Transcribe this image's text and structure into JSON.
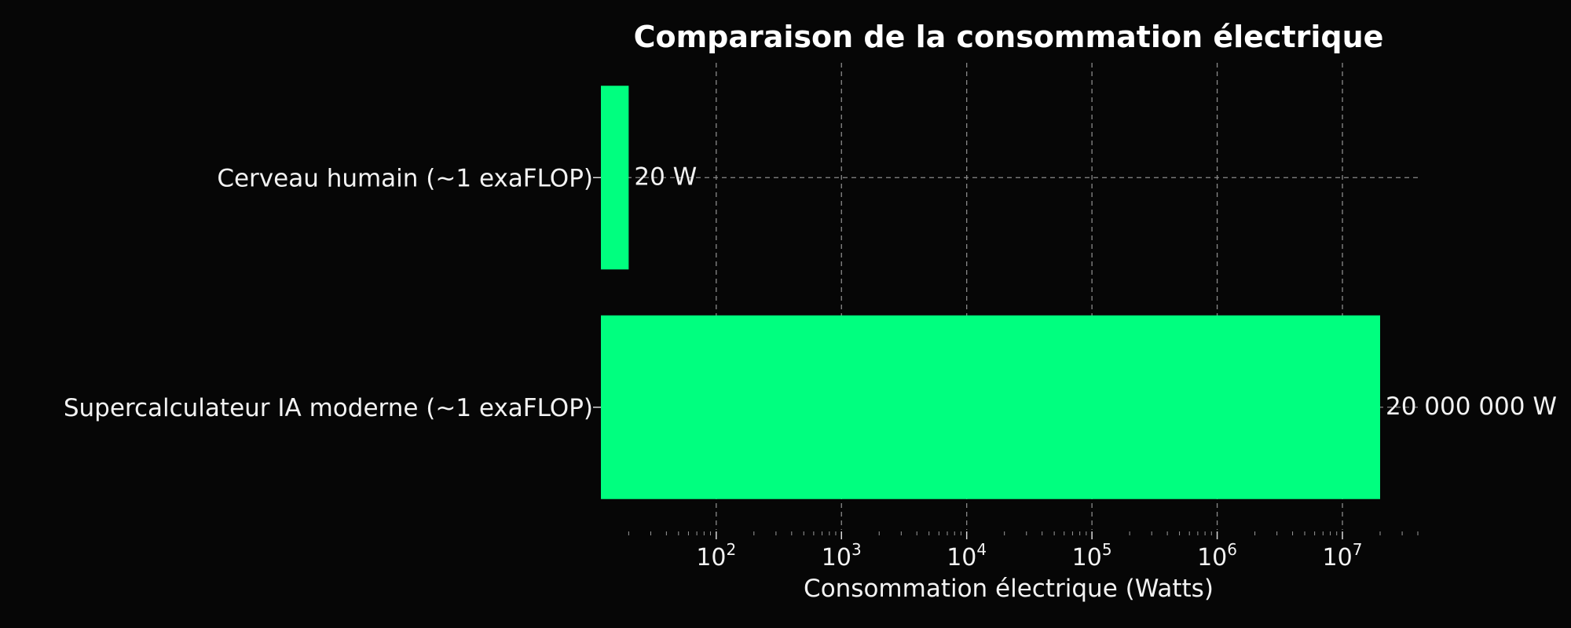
{
  "chart_data": {
    "type": "bar",
    "orientation": "horizontal",
    "title": "Comparaison de la consommation électrique",
    "xlabel": "Consommation électrique (Watts)",
    "ylabel": "",
    "xscale": "log",
    "xlim": [
      12,
      40000000
    ],
    "grid": true,
    "categories": [
      "Cerveau humain (~1 exaFLOP)",
      "Supercalculateur IA moderne (~1 exaFLOP)"
    ],
    "values": [
      20,
      20000000
    ],
    "value_labels": [
      "20 W",
      "20 000 000 W"
    ],
    "x_ticks": [
      {
        "value": 100,
        "base": "10",
        "exp": "2"
      },
      {
        "value": 1000,
        "base": "10",
        "exp": "3"
      },
      {
        "value": 10000,
        "base": "10",
        "exp": "4"
      },
      {
        "value": 100000,
        "base": "10",
        "exp": "5"
      },
      {
        "value": 1000000,
        "base": "10",
        "exp": "6"
      },
      {
        "value": 10000000,
        "base": "10",
        "exp": "7"
      }
    ],
    "colors": {
      "bar": "#00ff7f",
      "background": "#060606",
      "text": "#f2f2f2",
      "grid": "#8a8a8a"
    }
  }
}
